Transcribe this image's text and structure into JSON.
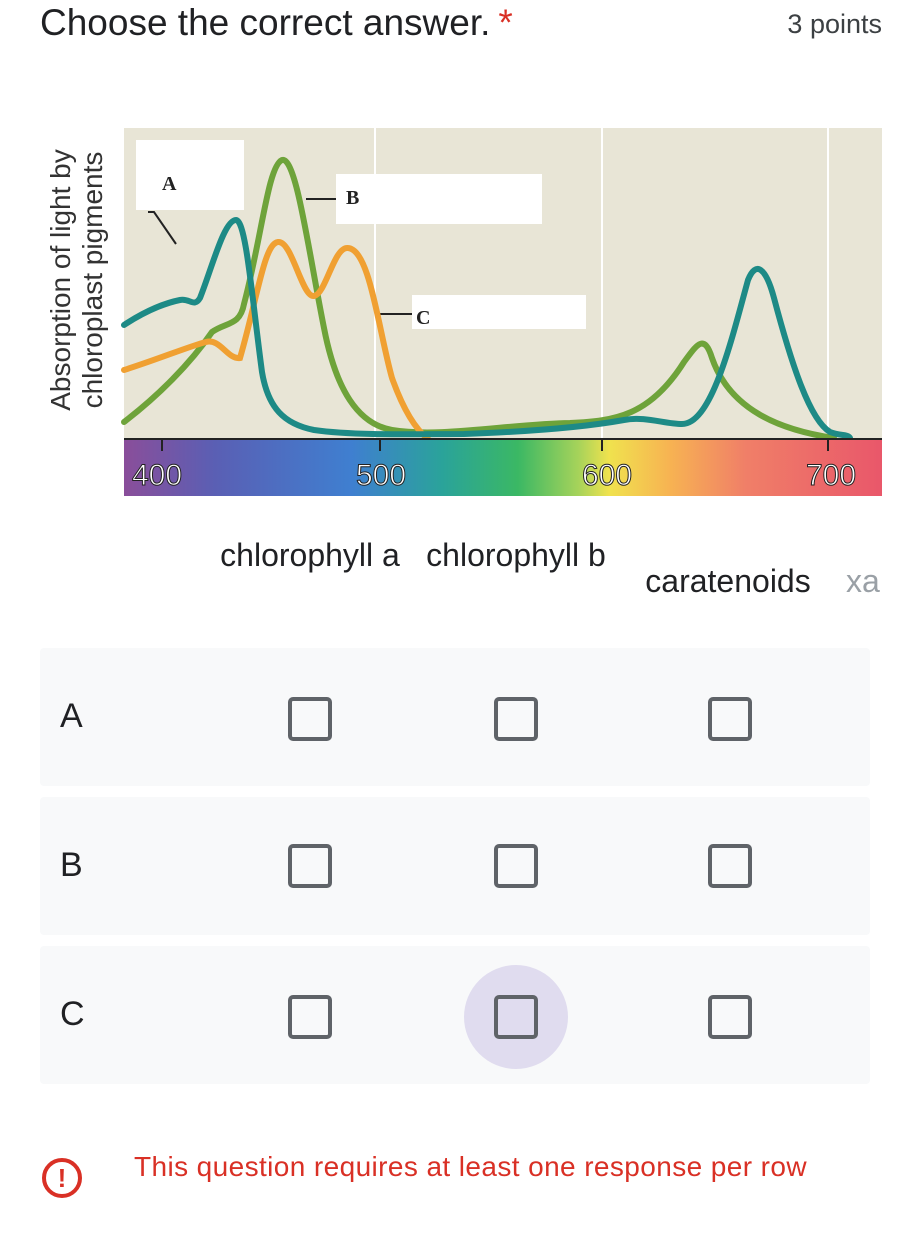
{
  "question": {
    "title": "Choose the correct answer.",
    "required_mark": "*",
    "points": "3 points"
  },
  "figure": {
    "ylabel_line1": "Absorption of light by",
    "ylabel_line2": "chloroplast pigments",
    "axis_ticks": [
      "400",
      "500",
      "600",
      "700"
    ],
    "callouts": [
      "A",
      "B",
      "C"
    ],
    "colors": {
      "background": "#e8e5d6",
      "curve_a": "#1d8a86",
      "curve_b": "#6ea33a",
      "curve_c": "#f0a032"
    }
  },
  "grid": {
    "columns": [
      "chlorophyll a",
      "chlorophyll b",
      "caratenoids",
      "xa"
    ],
    "rows": [
      "A",
      "B",
      "C"
    ],
    "focused": {
      "row": 2,
      "col": 1
    }
  },
  "error": {
    "icon": "exclamation-icon",
    "message": "This question requires at least one response per row"
  },
  "colors": {
    "error": "#d93025",
    "row_bg": "#f8f9fa",
    "focus_halo": "#e0dcef"
  }
}
